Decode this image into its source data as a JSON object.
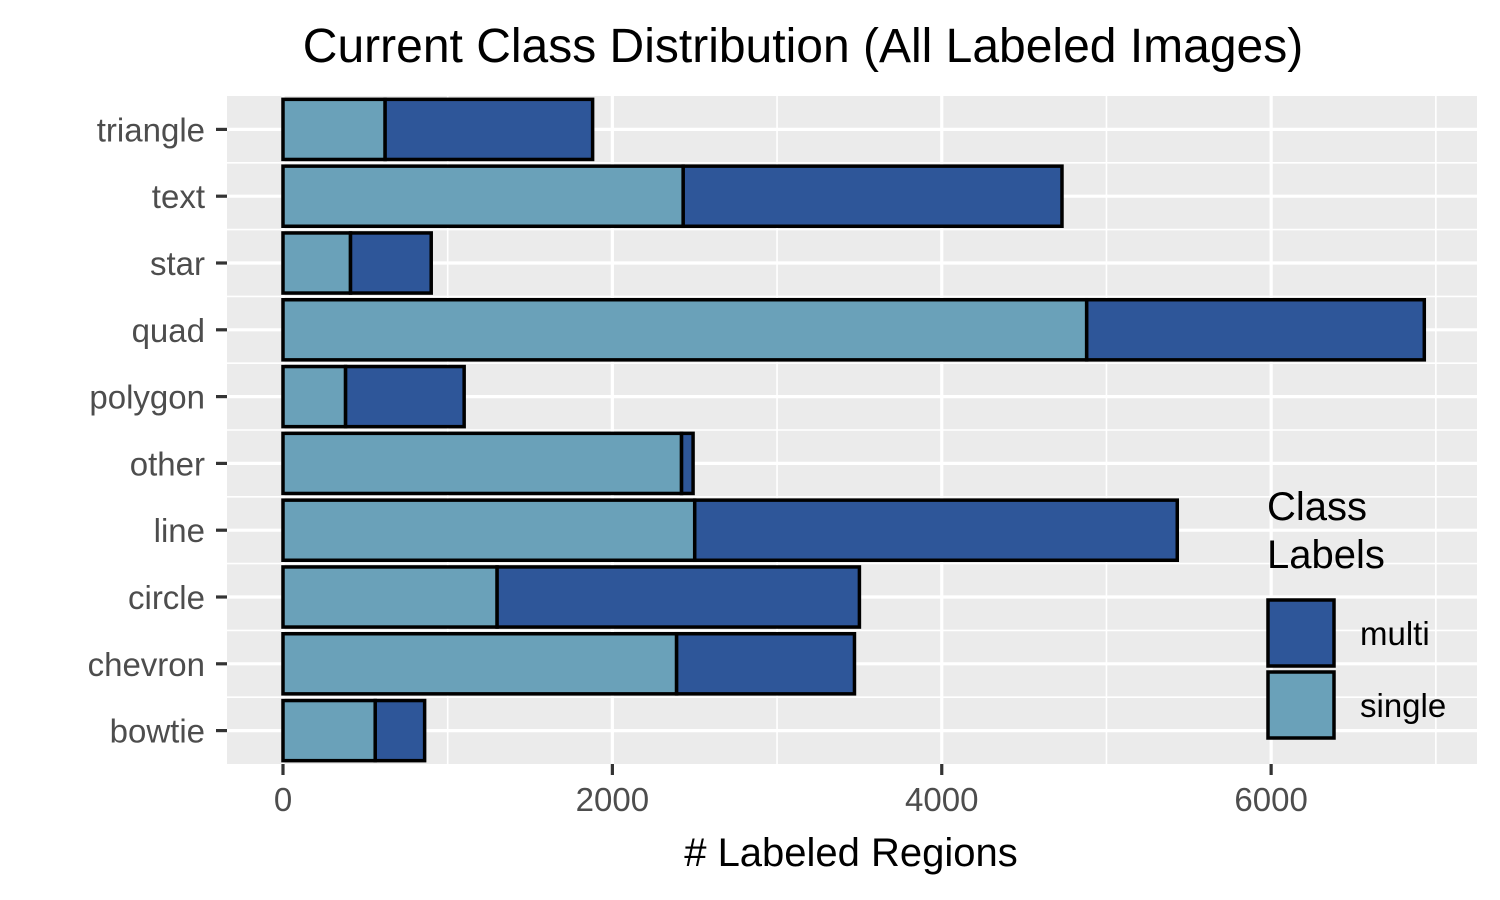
{
  "chart_data": {
    "type": "bar",
    "orientation": "horizontal",
    "stacked": true,
    "title": "Current Class Distribution (All Labeled Images)",
    "xlabel": "# Labeled Regions",
    "ylabel": "",
    "xlim": [
      -340,
      7250
    ],
    "xticks": [
      0,
      2000,
      4000,
      6000
    ],
    "xtick_labels": [
      "0",
      "2000",
      "4000",
      "6000"
    ],
    "grid": true,
    "legend_position": "right",
    "legend_title": "Class\nLabels",
    "categories": [
      "triangle",
      "text",
      "star",
      "quad",
      "polygon",
      "other",
      "line",
      "circle",
      "chevron",
      "bowtie"
    ],
    "series": [
      {
        "name": "single",
        "color": "#6aa1b9",
        "values": [
          620,
          2430,
          410,
          4880,
          380,
          2420,
          2500,
          1300,
          2390,
          560
        ]
      },
      {
        "name": "multi",
        "color": "#2e5699",
        "values": [
          1260,
          2300,
          490,
          2050,
          720,
          70,
          2930,
          2200,
          1080,
          300
        ]
      }
    ],
    "legend_order": [
      "multi",
      "single"
    ],
    "colors": {
      "panel_bg": "#ebebeb",
      "grid": "#ffffff",
      "bar_border": "#000000"
    }
  }
}
